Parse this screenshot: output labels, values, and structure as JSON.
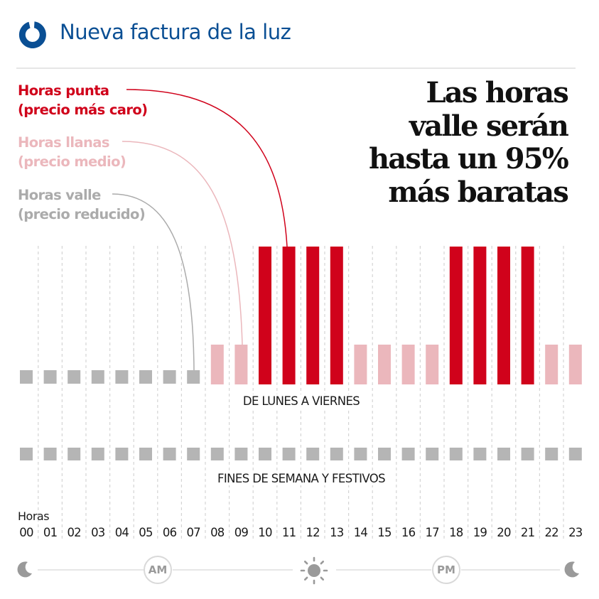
{
  "header": {
    "title": "Nueva factura de la luz",
    "logo_icon": "ring-logo-icon",
    "brand_color": "#0a4f94"
  },
  "legend": [
    {
      "key": "punta",
      "line1": "Horas punta",
      "line2": "(precio más caro)",
      "color": "#d0021b",
      "points_to_hour": "11"
    },
    {
      "key": "llana",
      "line1": "Horas llanas",
      "line2": "(precio medio)",
      "color": "#ebb7bc",
      "points_to_hour": "09"
    },
    {
      "key": "valle",
      "line1": "Horas valle",
      "line2": "(precio reducido)",
      "color": "#b5b5b5",
      "points_to_hour": "07"
    }
  ],
  "headline": {
    "lines": [
      "Las horas",
      "valle serán",
      "hasta un 95%",
      "más baratas"
    ]
  },
  "chart_data": {
    "type": "bar",
    "title": "Nueva factura de la luz",
    "xlabel": "Horas",
    "categories": [
      "00",
      "01",
      "02",
      "03",
      "04",
      "05",
      "06",
      "07",
      "08",
      "09",
      "10",
      "11",
      "12",
      "13",
      "14",
      "15",
      "16",
      "17",
      "18",
      "19",
      "20",
      "21",
      "22",
      "23"
    ],
    "tier_levels": {
      "valle": 1,
      "llana": 2,
      "punta": 3
    },
    "tier_colors": {
      "valle": "#b5b5b5",
      "llana": "#ebb7bc",
      "punta": "#d0021b"
    },
    "series": [
      {
        "name": "DE LUNES A VIERNES",
        "values": [
          "valle",
          "valle",
          "valle",
          "valle",
          "valle",
          "valle",
          "valle",
          "valle",
          "llana",
          "llana",
          "punta",
          "punta",
          "punta",
          "punta",
          "llana",
          "llana",
          "llana",
          "llana",
          "punta",
          "punta",
          "punta",
          "punta",
          "llana",
          "llana"
        ]
      },
      {
        "name": "FINES DE SEMANA Y FESTIVOS",
        "values": [
          "valle",
          "valle",
          "valle",
          "valle",
          "valle",
          "valle",
          "valle",
          "valle",
          "valle",
          "valle",
          "valle",
          "valle",
          "valle",
          "valle",
          "valle",
          "valle",
          "valle",
          "valle",
          "valle",
          "valle",
          "valle",
          "valle",
          "valle",
          "valle"
        ]
      }
    ],
    "grid": "dashed vertical separators",
    "legend_position": "top-left"
  },
  "timeline": {
    "axis_label": "Horas",
    "am_label": "AM",
    "pm_label": "PM",
    "icons": [
      "moon-icon",
      "sun-icon",
      "moon-icon"
    ]
  }
}
